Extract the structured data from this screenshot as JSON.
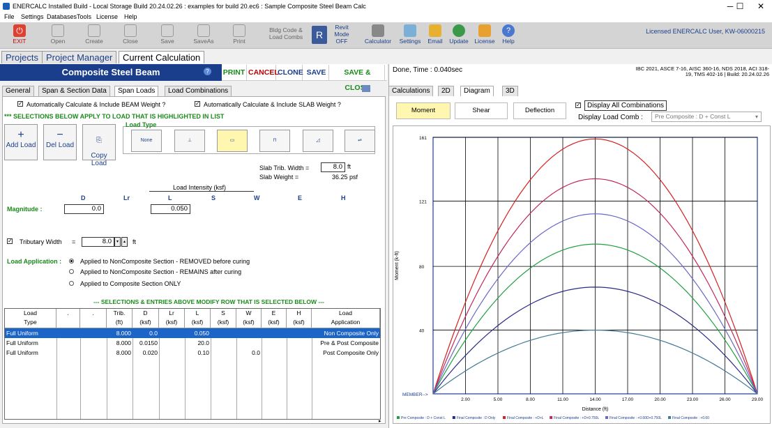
{
  "window": {
    "title": "ENERCALC Installed Build - Local Storage Build 20.24.02.26 :  examples for build 20.ec6 : Sample Composite Steel Beam Calc",
    "minimize": "─",
    "maximize": "☐",
    "close": "✕"
  },
  "menu": [
    "File",
    "Settings",
    "Databases",
    "Tools",
    "License",
    "Help"
  ],
  "toolbar": {
    "exit": "EXIT",
    "open": "Open",
    "create": "Create",
    "close": "Close",
    "save": "Save",
    "saveas": "SaveAs",
    "print": "Print",
    "bldg_code": "Bldg Code &\nLoad Combs",
    "revit": "Revit\nMode\nOFF",
    "calculator": "Calculator",
    "settings": "Settings",
    "email": "Email",
    "update": "Update",
    "license": "License",
    "help": "Help"
  },
  "licensed_user": "Licensed ENERCALC User, KW-06000215",
  "page_tabs": [
    "Projects",
    "Project Manager",
    "Current Calculation"
  ],
  "header": {
    "title": "Composite Steel Beam",
    "print": "PRINT",
    "cancel": "CANCEL",
    "clone": "CLONE",
    "save": "SAVE",
    "save_close": "SAVE & CLOSE",
    "status": "Done, Time :  0.040sec",
    "codes_line1": "IBC 2021, ASCE 7-16, AISC 360-16, NDS 2018, ACI 318-",
    "codes_line2": "19, TMS 402-16 | Build: 20.24.02.26"
  },
  "left_tabs": [
    "General",
    "Span & Section Data",
    "Span Loads",
    "Load Combinations"
  ],
  "span_loads": {
    "auto_beam": "Automatically Calculate & Include BEAM Weight ?",
    "auto_slab": "Automatically Calculate & Include SLAB Weight ?",
    "selections_note": "*** SELECTIONS BELOW APPLY TO LOAD THAT IS HIGHLIGHTED IN LIST",
    "add_load": "Add Load",
    "del_load": "Del Load",
    "copy_load": "Copy\nLoad",
    "load_type": "Load Type",
    "none_label": "None",
    "slab_trib_label": "Slab Trib. Width =",
    "slab_trib_value": "8.0",
    "slab_trib_unit": "ft",
    "slab_weight_label": "Slab Weight =",
    "slab_weight_value": "36.25 psf",
    "load_intensity": "Load Intensity  (ksf)",
    "cols": [
      "D",
      "Lr",
      "L",
      "S",
      "W",
      "E",
      "H"
    ],
    "magnitude_label": "Magnitude :",
    "mag_d": "0.0",
    "mag_l": "0.050",
    "trib_label": "Tributary Width",
    "trib_eq": "=",
    "trib_value": "8.0",
    "trib_unit": "ft",
    "load_app_label": "Load Application :",
    "app_options": [
      "Applied to NonComposite Section - REMOVED before curing",
      "Applied to NonComposite Section - REMAINS after curing",
      "Applied to Composite Section ONLY"
    ],
    "modify_note": "--- SELECTIONS & ENTRIES ABOVE MODIFY ROW THAT IS SELECTED BELOW ---"
  },
  "grid": {
    "headers": [
      [
        "Load",
        "Type"
      ],
      [
        ".",
        ""
      ],
      [
        ".",
        ""
      ],
      [
        "Trib.",
        "(ft)"
      ],
      [
        "D",
        "(ksf)"
      ],
      [
        "Lr",
        "(ksf)"
      ],
      [
        "L",
        "(ksf)"
      ],
      [
        "S",
        "(ksf)"
      ],
      [
        "W",
        "(ksf)"
      ],
      [
        "E",
        "(ksf)"
      ],
      [
        "H",
        "(ksf)"
      ],
      [
        "Load",
        "Application"
      ]
    ],
    "rows": [
      {
        "type": "Full Uniform",
        "trib": "8.000",
        "d": "0.0",
        "l": "0.050",
        "w": "",
        "app": "Non Composite Only"
      },
      {
        "type": "Full Uniform",
        "trib": "8.000",
        "d": "0.0150",
        "l": "20.0",
        "w": "",
        "app": "Pre & Post Composite"
      },
      {
        "type": "Full Uniform",
        "trib": "8.000",
        "d": "0.020",
        "l": "0.10",
        "w": "0.0",
        "app": "Post Composite Only"
      }
    ]
  },
  "right_tabs": [
    "Calculations",
    "2D",
    "Diagram",
    "3D"
  ],
  "diagram": {
    "moment": "Moment",
    "shear": "Shear",
    "deflection": "Deflection",
    "display_all": "Display All Combinations",
    "display_comb_label": "Display Load Comb :",
    "display_comb_value": "Pre Composite : D + Const L",
    "member_label": "MEMBER-->"
  },
  "chart_data": {
    "type": "line",
    "ylabel": "Moment (k-ft)",
    "xlabel": "Distance (ft)",
    "xlim": [
      0,
      29
    ],
    "ylim": [
      0,
      161
    ],
    "x_ticks": [
      "2.00",
      "5.00",
      "8.00",
      "11.00",
      "14.00",
      "17.00",
      "20.00",
      "23.00",
      "26.00",
      "29.00"
    ],
    "y_ticks": [
      "161",
      "121",
      "80",
      "40"
    ],
    "grid": true,
    "series": [
      {
        "name": "Pre Composite : D + Const L",
        "color": "#20a040",
        "peak": 94
      },
      {
        "name": "Final Composite : D Only",
        "color": "#2a2a88",
        "peak": 67
      },
      {
        "name": "Final Composite : +D+L",
        "color": "#d42020",
        "peak": 160
      },
      {
        "name": "Final Composite : +D+0.750L",
        "color": "#c02858",
        "peak": 135
      },
      {
        "name": "Final Composite : +0.60D+0.750L",
        "color": "#6868c8",
        "peak": 113
      },
      {
        "name": "Final Composite : +0.60",
        "color": "#407898",
        "peak": 40
      }
    ]
  },
  "colors": {
    "navy": "#1b3e8c",
    "green": "#1a8a1a",
    "red": "#c00000",
    "selected_row": "#1b64c8",
    "highlight_yellow": "#fff7b0"
  },
  "icons": [
    "exit-icon",
    "open-icon",
    "create-icon",
    "close-icon",
    "save-icon",
    "saveas-icon",
    "print-icon",
    "revit-icon",
    "calculator-icon",
    "settings-icon",
    "email-icon",
    "update-icon",
    "license-icon",
    "help-icon"
  ]
}
